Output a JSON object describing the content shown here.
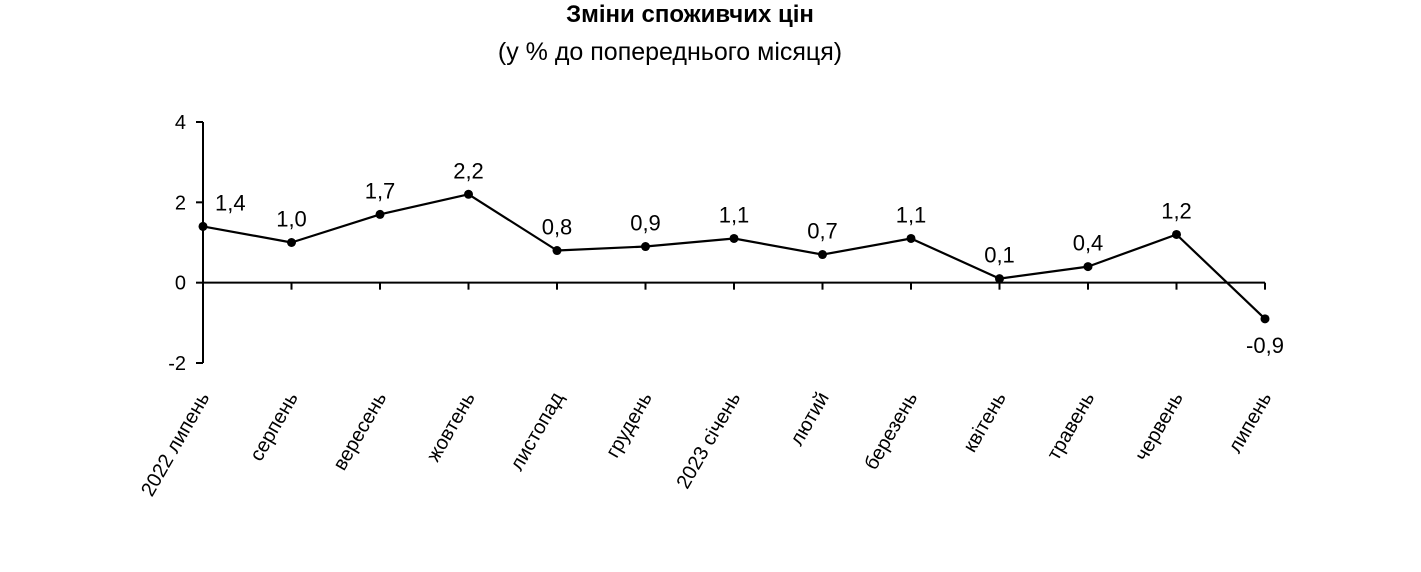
{
  "chart_data": {
    "type": "line",
    "title": "Зміни споживчих цін",
    "subtitle": "(у % до попереднього місяця)",
    "categories": [
      "2022 липень",
      "серпень",
      "вересень",
      "жовтень",
      "листопад",
      "грудень",
      "2023 січень",
      "лютий",
      "березень",
      "квітень",
      "травень",
      "червень",
      "липень"
    ],
    "series": [
      {
        "values": [
          1.4,
          1.0,
          1.7,
          2.2,
          0.8,
          0.9,
          1.1,
          0.7,
          1.1,
          0.1,
          0.4,
          1.2,
          -0.9
        ],
        "labels": [
          "1,4",
          "1,0",
          "1,7",
          "2,2",
          "0,8",
          "0,9",
          "1,1",
          "0,7",
          "1,1",
          "0,1",
          "0,4",
          "1,2",
          "-0,9"
        ]
      }
    ],
    "ylim": [
      -2,
      4
    ],
    "yticks": [
      4,
      2,
      0,
      -2
    ],
    "ytick_labels": [
      "4",
      "2",
      "0",
      "-2"
    ],
    "grid": false,
    "legend": "none",
    "colors": {
      "line": "#000000",
      "marker": "#000000",
      "axis": "#000000"
    }
  }
}
